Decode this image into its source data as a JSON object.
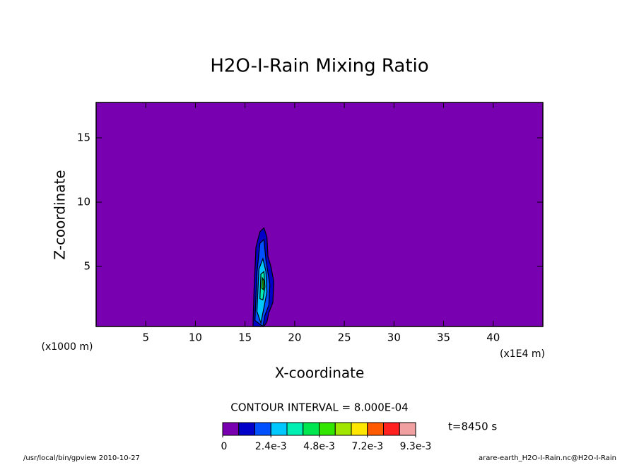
{
  "chart_data": {
    "type": "contour",
    "title": "H2O-I-Rain Mixing Ratio",
    "xlabel": "X-coordinate",
    "ylabel": "Z-coordinate",
    "x_unit_left": "(x1000 m)",
    "x_unit_right": "(x1E4 m)",
    "contour_interval": "CONTOUR INTERVAL = 8.000E-04",
    "time_label": "t=8450 s",
    "footer_left": "/usr/local/bin/gpview  2010-10-27",
    "footer_right": "arare-earth_H2O-I-Rain.nc@H2O-I-Rain",
    "xlim": [
      0,
      45
    ],
    "ylim": [
      0.33,
      17.75
    ],
    "xticks": [
      5,
      10,
      15,
      20,
      25,
      30,
      35,
      40
    ],
    "yticks": [
      5,
      10,
      15
    ],
    "background_color": "#7800b0",
    "colorbar": {
      "levels": [
        0,
        0.0008,
        0.0016,
        0.0024,
        0.0032,
        0.004,
        0.0048,
        0.0056,
        0.0064,
        0.0072,
        0.008,
        0.0088,
        0.0093
      ],
      "colors": [
        "#7800b0",
        "#0000c8",
        "#0050ff",
        "#00c8ff",
        "#00f0b4",
        "#00e650",
        "#32e600",
        "#a0e600",
        "#ffe600",
        "#ff5a00",
        "#ff2020",
        "#f0a0a0"
      ],
      "ticks": [
        {
          "value": 0,
          "label": "0"
        },
        {
          "value": 0.0024,
          "label": "2.4e-3"
        },
        {
          "value": 0.0048,
          "label": "4.8e-3"
        },
        {
          "value": 0.0072,
          "label": "7.2e-3"
        },
        {
          "value": 0.0093,
          "label": "9.3e-3"
        }
      ]
    },
    "contours": [
      {
        "level": 0.0008,
        "x": [
          15.8,
          15.9,
          16.1,
          16.5,
          16.9,
          17.2,
          17.3,
          17.6,
          17.9,
          17.8,
          17.4,
          17.2,
          16.9,
          15.8
        ],
        "z": [
          0.33,
          3.0,
          6.5,
          7.7,
          8.0,
          7.3,
          5.8,
          5.0,
          3.8,
          2.2,
          1.4,
          0.7,
          0.33,
          0.33
        ]
      },
      {
        "level": 0.0016,
        "x": [
          16.0,
          16.2,
          16.5,
          16.9,
          17.1,
          17.5,
          17.4,
          17.0,
          16.8,
          16.0
        ],
        "z": [
          0.8,
          4.5,
          6.8,
          7.1,
          5.5,
          3.6,
          2.0,
          1.2,
          0.33,
          0.8
        ]
      },
      {
        "level": 0.0024,
        "x": [
          16.2,
          16.4,
          16.8,
          17.1,
          17.2,
          16.9,
          16.6,
          16.2
        ],
        "z": [
          1.5,
          4.8,
          5.6,
          4.6,
          3.0,
          1.8,
          0.6,
          1.5
        ]
      },
      {
        "level": 0.0032,
        "x": [
          16.5,
          16.6,
          16.9,
          17.0,
          16.8,
          16.5
        ],
        "z": [
          2.5,
          4.4,
          4.6,
          3.4,
          2.4,
          2.5
        ]
      },
      {
        "level": 0.0048,
        "x": [
          16.7,
          16.75,
          16.9,
          16.85,
          16.7
        ],
        "z": [
          3.3,
          4.1,
          3.9,
          3.2,
          3.3
        ]
      }
    ]
  }
}
